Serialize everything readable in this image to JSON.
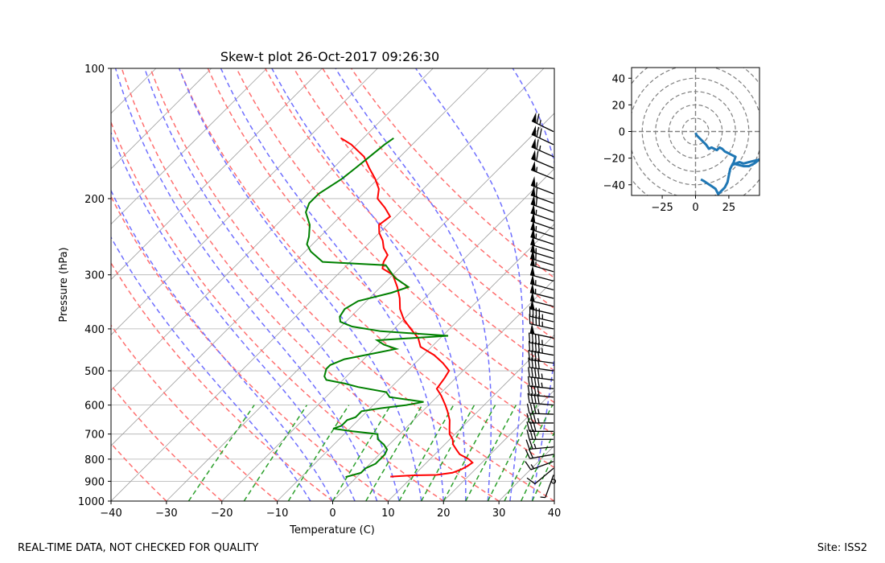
{
  "footer": {
    "disclaimer": "REAL-TIME DATA, NOT CHECKED FOR QUALITY",
    "site": "Site: ISS2"
  },
  "colors": {
    "temperature": "#ff0000",
    "dewpoint": "#008000",
    "dry_adiabat": "#ff6f6f",
    "moist_adiabat": "#6f6fff",
    "mixing_ratio": "#2ca02c",
    "isotherm": "#a0a0a0",
    "hodograph": "#1f77b4"
  },
  "chart_data": [
    {
      "type": "line",
      "name": "skewt",
      "title": "Skew-t plot 26-Oct-2017 09:26:30",
      "xlabel": "Temperature (C)",
      "ylabel": "Pressure (hPa)",
      "xlim": [
        -40,
        40
      ],
      "ylim": [
        1000,
        100
      ],
      "yscale": "log",
      "skew": 35,
      "xticks": [
        -40,
        -30,
        -20,
        -10,
        0,
        10,
        20,
        30,
        40
      ],
      "xtick_labels": [
        "−40",
        "−30",
        "−20",
        "−10",
        "0",
        "10",
        "20",
        "30",
        "40"
      ],
      "yticks": [
        1000,
        900,
        800,
        700,
        600,
        500,
        400,
        300,
        200,
        100
      ],
      "ytick_labels": [
        "1000",
        "900",
        "800",
        "700",
        "600",
        "500",
        "400",
        "300",
        "200",
        "100"
      ],
      "isotherms_T": [
        -170,
        -160,
        -150,
        -140,
        -130,
        -120,
        -110,
        -100,
        -90,
        -80,
        -70,
        -60,
        -50,
        -40,
        -30,
        -20,
        -10,
        0,
        10,
        20,
        30,
        40
      ],
      "dry_adiabats_theta_C": [
        -30,
        -20,
        -10,
        0,
        10,
        20,
        30,
        40,
        50,
        60,
        70,
        80,
        90,
        100,
        110
      ],
      "moist_adiabats_surface_T": [
        -4,
        0,
        4,
        8,
        12,
        16,
        20,
        24,
        28,
        32,
        36
      ],
      "mixing_ratio_dewpoints_at_1000": [
        -26,
        -16,
        -8,
        0,
        6,
        12,
        16,
        20,
        24,
        28,
        31,
        34,
        36
      ],
      "series": [
        {
          "name": "temperature",
          "color": "red",
          "pressure": [
            878,
            872,
            870,
            860,
            845,
            830,
            815,
            800,
            780,
            760,
            740,
            720,
            700,
            680,
            650,
            620,
            600,
            570,
            550,
            520,
            500,
            480,
            460,
            440,
            420,
            400,
            380,
            360,
            340,
            320,
            300,
            290,
            280,
            270,
            260,
            250,
            240,
            230,
            220,
            210,
            200,
            190,
            180,
            170,
            160,
            150,
            145
          ],
          "T": [
            6.0,
            10.0,
            14.0,
            16.5,
            17.5,
            18.0,
            18.3,
            17.0,
            14.5,
            13.0,
            11.5,
            10.5,
            9.0,
            8.0,
            6.5,
            4.5,
            3.0,
            0.5,
            -1.5,
            -2.0,
            -2.5,
            -5.0,
            -8.0,
            -12.0,
            -14.0,
            -17.0,
            -20.0,
            -22.5,
            -24.5,
            -27.0,
            -30.0,
            -33.0,
            -34.0,
            -34.5,
            -36.5,
            -38.0,
            -40.0,
            -41.5,
            -41.0,
            -43.5,
            -46.5,
            -48.0,
            -50.5,
            -53.5,
            -56.5,
            -61.0,
            -64.0
          ]
        },
        {
          "name": "dewpoint",
          "color": "green",
          "pressure": [
            880,
            860,
            840,
            820,
            800,
            780,
            760,
            740,
            720,
            700,
            690,
            680,
            670,
            650,
            640,
            620,
            610,
            600,
            590,
            575,
            560,
            545,
            535,
            525,
            515,
            505,
            495,
            485,
            470,
            455,
            445,
            435,
            425,
            415,
            405,
            395,
            385,
            375,
            360,
            345,
            330,
            320,
            305,
            300,
            285,
            280,
            265,
            255,
            245,
            230,
            215,
            205,
            195,
            180,
            170,
            160,
            150,
            145
          ],
          "T": [
            -2.0,
            0.0,
            0.0,
            1.0,
            1.0,
            1.0,
            0.5,
            -1.0,
            -3.0,
            -4.0,
            -9.0,
            -13.0,
            -12.0,
            -12.0,
            -11.0,
            -11.0,
            -8.0,
            -4.0,
            -1.5,
            -8.5,
            -10.0,
            -16.0,
            -19.0,
            -23.0,
            -24.0,
            -24.5,
            -25.0,
            -25.0,
            -23.5,
            -19.0,
            -16.0,
            -19.0,
            -21.0,
            -9.0,
            -22.0,
            -28.0,
            -31.0,
            -32.0,
            -32.5,
            -31.5,
            -27.0,
            -25.0,
            -29.0,
            -30.0,
            -33.0,
            -45.0,
            -49.0,
            -51.0,
            -52.0,
            -54.0,
            -57.0,
            -58.0,
            -58.0,
            -56.5,
            -56.0,
            -55.5,
            -55.0,
            -54.5
          ]
        }
      ]
    },
    {
      "type": "scatter",
      "name": "hodograph",
      "xlim": [
        -48,
        48
      ],
      "ylim": [
        -48,
        48
      ],
      "xticks": [
        -25,
        0,
        25
      ],
      "xtick_labels": [
        "−25",
        "0",
        "25"
      ],
      "yticks": [
        40,
        20,
        0,
        -20,
        -40
      ],
      "ytick_labels": [
        "40",
        "20",
        "0",
        "−20",
        "−40"
      ],
      "rings": [
        10,
        20,
        30,
        40,
        50,
        60
      ],
      "u": [
        0,
        1,
        3,
        5,
        8,
        10,
        12,
        14,
        16,
        18,
        20,
        22,
        24,
        26,
        28,
        30,
        29,
        28,
        30,
        33,
        36,
        40,
        44,
        48,
        44,
        40,
        36,
        32,
        28,
        26,
        25,
        24,
        22,
        20,
        17,
        15,
        12,
        9,
        6,
        4
      ],
      "v": [
        -1,
        -3,
        -5,
        -7,
        -10,
        -13,
        -12,
        -13,
        -14,
        -12,
        -13,
        -15,
        -16,
        -17,
        -18,
        -19,
        -22,
        -25,
        -24,
        -23,
        -24,
        -23,
        -22,
        -21,
        -24,
        -26,
        -26,
        -25,
        -24,
        -28,
        -33,
        -38,
        -42,
        -44,
        -47,
        -43,
        -41,
        -39,
        -37,
        -36
      ]
    },
    {
      "type": "barbs",
      "name": "wind-barbs",
      "pressure": [
        900,
        870,
        840,
        810,
        780,
        750,
        720,
        690,
        660,
        630,
        600,
        575,
        550,
        525,
        500,
        480,
        460,
        440,
        420,
        400,
        385,
        370,
        355,
        340,
        325,
        310,
        295,
        285,
        275,
        265,
        255,
        245,
        235,
        225,
        215,
        205,
        195,
        180,
        170,
        160,
        150,
        140
      ],
      "speed_kt": [
        0,
        5,
        10,
        15,
        20,
        25,
        30,
        30,
        35,
        35,
        40,
        40,
        45,
        45,
        40,
        40,
        45,
        45,
        50,
        45,
        45,
        50,
        50,
        55,
        55,
        50,
        55,
        60,
        55,
        50,
        55,
        55,
        50,
        55,
        60,
        60,
        55,
        55,
        60,
        65,
        70,
        65
      ],
      "direction_deg": [
        180,
        200,
        230,
        250,
        260,
        265,
        270,
        270,
        270,
        272,
        275,
        275,
        276,
        277,
        278,
        278,
        280,
        280,
        282,
        282,
        283,
        283,
        284,
        284,
        285,
        285,
        286,
        286,
        287,
        287,
        288,
        288,
        289,
        289,
        290,
        290,
        291,
        292,
        293,
        294,
        295,
        296
      ]
    }
  ]
}
